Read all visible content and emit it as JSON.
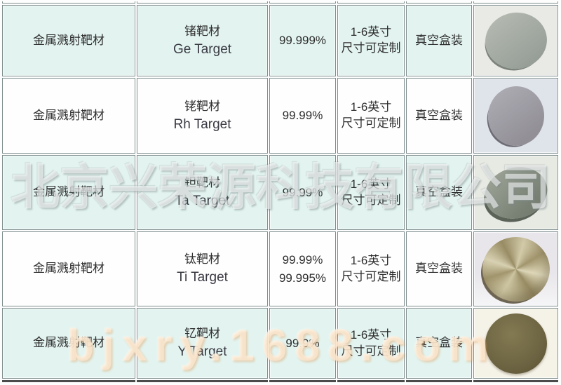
{
  "watermarks": {
    "company": "北京兴荣源科技有限公司",
    "website": "bjxry.1688.com"
  },
  "colors": {
    "row_alt_bg": "#e3f4f0",
    "row_bg": "#fefefe",
    "cell_border": "#7f8e8e",
    "bottom_rule": "#4b4b4b",
    "text": "#2e2e2e",
    "ge_disc": "#9aa29b",
    "rh_disc": "#928f97",
    "ta_disc": "#7a8276",
    "ti_disc": "#bdb28c",
    "y_disc": "#6c6342"
  },
  "table": {
    "rows": [
      {
        "category": "金属溅射靶材",
        "name_cn": "锗靶材",
        "name_en": "Ge Target",
        "purity": "99.999%",
        "size_line1": "1-6英寸",
        "size_line2": "尺寸可定制",
        "packaging": "真空盒装",
        "photo": "ge-target-disc-photo"
      },
      {
        "category": "金属溅射靶材",
        "name_cn": "铑靶材",
        "name_en": "Rh Target",
        "purity": "99.99%",
        "size_line1": "1-6英寸",
        "size_line2": "尺寸可定制",
        "packaging": "真空盒装",
        "photo": "rh-target-disc-photo"
      },
      {
        "category": "金属溅射靶材",
        "name_cn": "钽靶材",
        "name_en": "Ta Target",
        "purity": "99.99%",
        "size_line1": "1-6英寸",
        "size_line2": "尺寸可定制",
        "packaging": "真空盒装",
        "photo": "ta-target-disc-photo"
      },
      {
        "category": "金属溅射靶材",
        "name_cn": "钛靶材",
        "name_en": "Ti Target",
        "purity": "99.99%",
        "purity2": "99.995%",
        "size_line1": "1-6英寸",
        "size_line2": "尺寸可定制",
        "packaging": "真空盒装",
        "photo": "ti-target-disc-photo"
      },
      {
        "category": "金属溅射靶材",
        "name_cn": "钇靶材",
        "name_en": "Y Target",
        "purity": "99.9%",
        "size_line1": "1-6英寸",
        "size_line2": "尺寸可定制",
        "packaging": "真空盒装",
        "photo": "y-target-disc-photo"
      }
    ]
  }
}
